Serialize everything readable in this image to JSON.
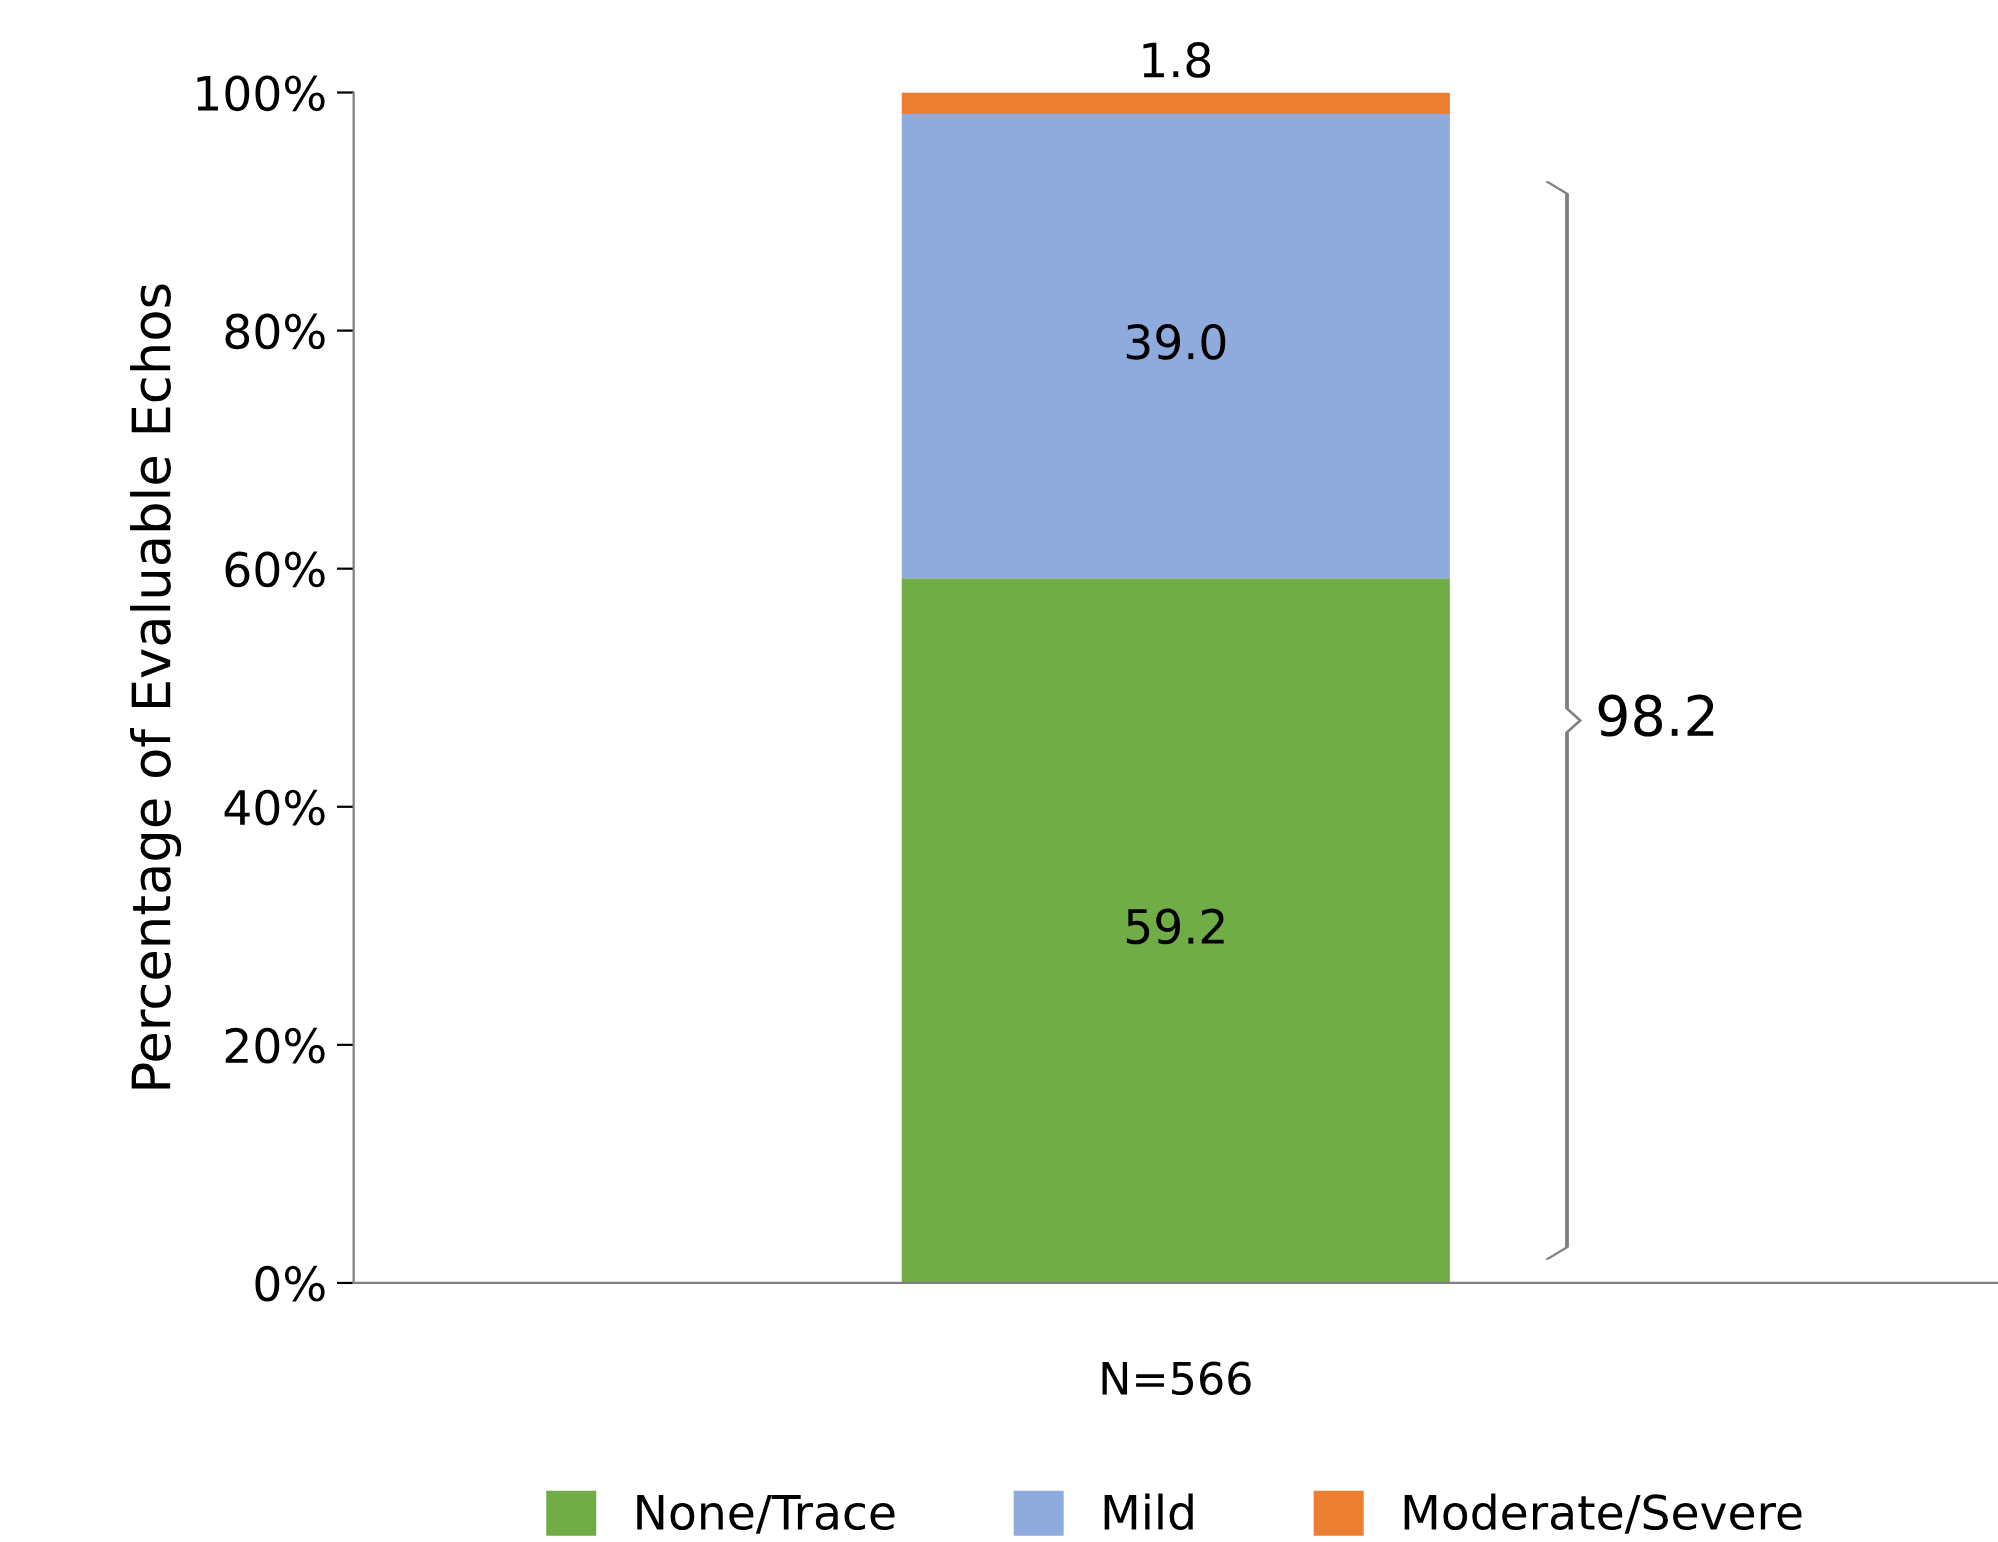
{
  "chart_data": {
    "type": "bar",
    "stacked": true,
    "ylabel": "Percentage of Evaluable Echos",
    "categories": [
      "N=566"
    ],
    "series": [
      {
        "name": "None/Trace",
        "color": "#70ad47",
        "values": [
          59.2
        ]
      },
      {
        "name": "Mild",
        "color": "#8faadc",
        "values": [
          39.0
        ]
      },
      {
        "name": "Moderate/Severe",
        "color": "#ed7d31",
        "values": [
          1.8
        ]
      }
    ],
    "value_labels": [
      [
        "59.2"
      ],
      [
        "39.0"
      ],
      [
        "1.8"
      ]
    ],
    "ylim": [
      0,
      100
    ],
    "yticks": [
      {
        "value": 0,
        "label": "0%"
      },
      {
        "value": 20,
        "label": "20%"
      },
      {
        "value": 40,
        "label": "40%"
      },
      {
        "value": 60,
        "label": "60%"
      },
      {
        "value": 80,
        "label": "80%"
      },
      {
        "value": 100,
        "label": "100%"
      }
    ],
    "annotations": [
      "98.2"
    ],
    "grid": false,
    "legend": "bottom"
  }
}
